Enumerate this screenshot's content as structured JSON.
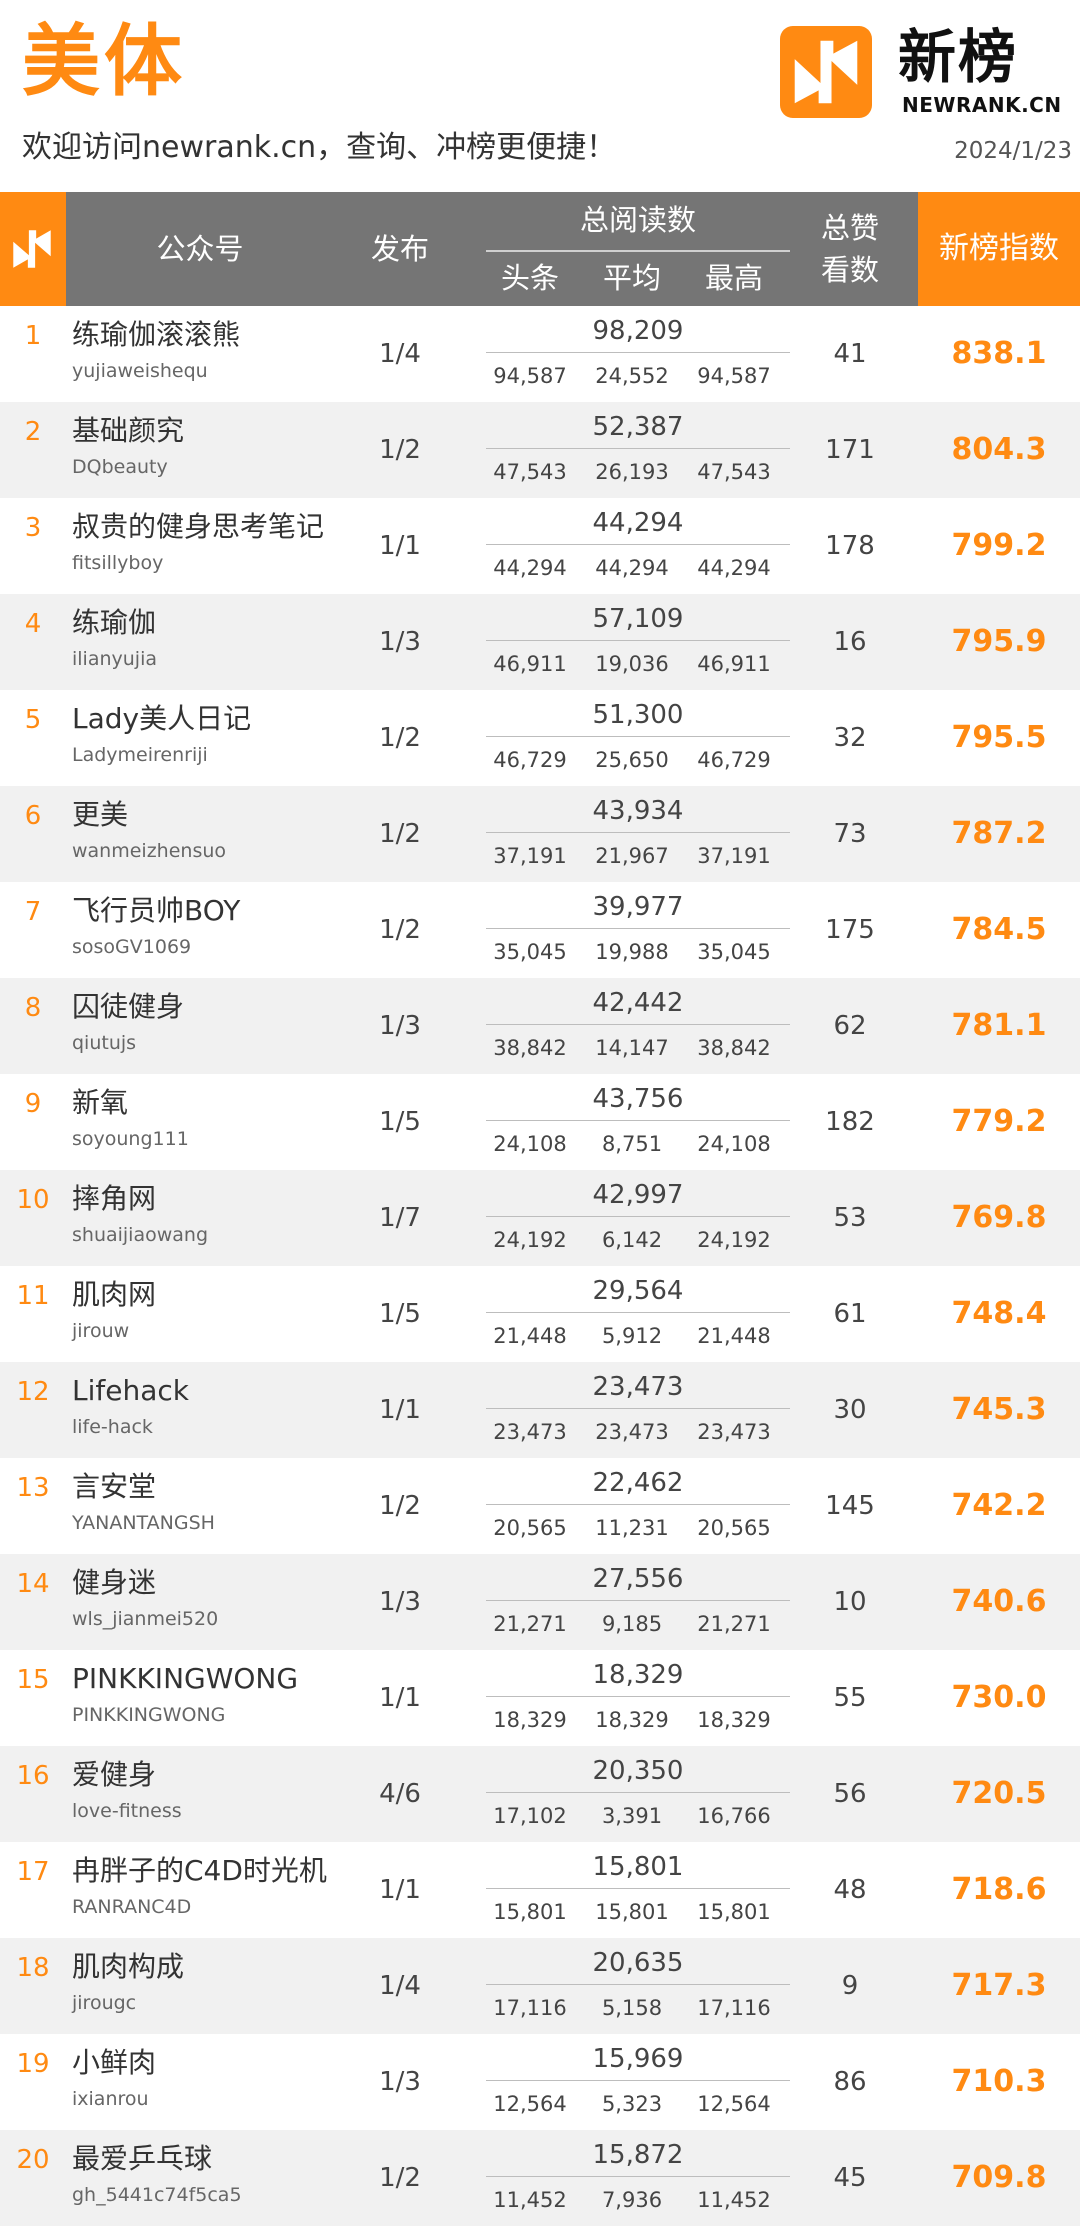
{
  "header": {
    "title": "美体",
    "subtitle": "欢迎访问newrank.cn，查询、冲榜更便捷！",
    "date": "2024/1/23",
    "brand": "新榜",
    "brand_sub": "NEWRANK.CN"
  },
  "table": {
    "col_account": "公众号",
    "col_publish": "发布",
    "col_reads": "总阅读数",
    "col_head": "头条",
    "col_avg": "平均",
    "col_max": "最高",
    "col_likes_1": "总赞",
    "col_likes_2": "看数",
    "col_index": "新榜指数"
  },
  "colors": {
    "accent": "#ff8a12",
    "header_gray": "#757575",
    "row_alt": "#f1f1f1"
  },
  "rows": [
    {
      "rank": "1",
      "name": "练瑜伽滚滚熊",
      "account": "yujiaweishequ",
      "publish": "1/4",
      "total": "98,209",
      "head": "94,587",
      "avg": "24,552",
      "max": "94,587",
      "likes": "41",
      "index": "838.1"
    },
    {
      "rank": "2",
      "name": "基础颜究",
      "account": "DQbeauty",
      "publish": "1/2",
      "total": "52,387",
      "head": "47,543",
      "avg": "26,193",
      "max": "47,543",
      "likes": "171",
      "index": "804.3"
    },
    {
      "rank": "3",
      "name": "叔贵的健身思考笔记",
      "account": "fitsillyboy",
      "publish": "1/1",
      "total": "44,294",
      "head": "44,294",
      "avg": "44,294",
      "max": "44,294",
      "likes": "178",
      "index": "799.2"
    },
    {
      "rank": "4",
      "name": "练瑜伽",
      "account": "ilianyujia",
      "publish": "1/3",
      "total": "57,109",
      "head": "46,911",
      "avg": "19,036",
      "max": "46,911",
      "likes": "16",
      "index": "795.9"
    },
    {
      "rank": "5",
      "name": "Lady美人日记",
      "account": "Ladymeirenriji",
      "publish": "1/2",
      "total": "51,300",
      "head": "46,729",
      "avg": "25,650",
      "max": "46,729",
      "likes": "32",
      "index": "795.5"
    },
    {
      "rank": "6",
      "name": "更美",
      "account": "wanmeizhensuo",
      "publish": "1/2",
      "total": "43,934",
      "head": "37,191",
      "avg": "21,967",
      "max": "37,191",
      "likes": "73",
      "index": "787.2"
    },
    {
      "rank": "7",
      "name": "飞行员帅BOY",
      "account": "sosoGV1069",
      "publish": "1/2",
      "total": "39,977",
      "head": "35,045",
      "avg": "19,988",
      "max": "35,045",
      "likes": "175",
      "index": "784.5"
    },
    {
      "rank": "8",
      "name": "囚徒健身",
      "account": "qiutujs",
      "publish": "1/3",
      "total": "42,442",
      "head": "38,842",
      "avg": "14,147",
      "max": "38,842",
      "likes": "62",
      "index": "781.1"
    },
    {
      "rank": "9",
      "name": "新氧",
      "account": "soyoung111",
      "publish": "1/5",
      "total": "43,756",
      "head": "24,108",
      "avg": "8,751",
      "max": "24,108",
      "likes": "182",
      "index": "779.2"
    },
    {
      "rank": "10",
      "name": "摔角网",
      "account": "shuaijiaowang",
      "publish": "1/7",
      "total": "42,997",
      "head": "24,192",
      "avg": "6,142",
      "max": "24,192",
      "likes": "53",
      "index": "769.8"
    },
    {
      "rank": "11",
      "name": "肌肉网",
      "account": "jirouw",
      "publish": "1/5",
      "total": "29,564",
      "head": "21,448",
      "avg": "5,912",
      "max": "21,448",
      "likes": "61",
      "index": "748.4"
    },
    {
      "rank": "12",
      "name": "Lifehack",
      "account": "life-hack",
      "publish": "1/1",
      "total": "23,473",
      "head": "23,473",
      "avg": "23,473",
      "max": "23,473",
      "likes": "30",
      "index": "745.3"
    },
    {
      "rank": "13",
      "name": "言安堂",
      "account": "YANANTANGSH",
      "publish": "1/2",
      "total": "22,462",
      "head": "20,565",
      "avg": "11,231",
      "max": "20,565",
      "likes": "145",
      "index": "742.2"
    },
    {
      "rank": "14",
      "name": "健身迷",
      "account": "wls_jianmei520",
      "publish": "1/3",
      "total": "27,556",
      "head": "21,271",
      "avg": "9,185",
      "max": "21,271",
      "likes": "10",
      "index": "740.6"
    },
    {
      "rank": "15",
      "name": "PINKKINGWONG",
      "account": "PINKKINGWONG",
      "publish": "1/1",
      "total": "18,329",
      "head": "18,329",
      "avg": "18,329",
      "max": "18,329",
      "likes": "55",
      "index": "730.0"
    },
    {
      "rank": "16",
      "name": "爱健身",
      "account": "love-fitness",
      "publish": "4/6",
      "total": "20,350",
      "head": "17,102",
      "avg": "3,391",
      "max": "16,766",
      "likes": "56",
      "index": "720.5"
    },
    {
      "rank": "17",
      "name": "冉胖子的C4D时光机",
      "account": "RANRANC4D",
      "publish": "1/1",
      "total": "15,801",
      "head": "15,801",
      "avg": "15,801",
      "max": "15,801",
      "likes": "48",
      "index": "718.6"
    },
    {
      "rank": "18",
      "name": "肌肉构成",
      "account": "jirougc",
      "publish": "1/4",
      "total": "20,635",
      "head": "17,116",
      "avg": "5,158",
      "max": "17,116",
      "likes": "9",
      "index": "717.3"
    },
    {
      "rank": "19",
      "name": "小鲜肉",
      "account": "ixianrou",
      "publish": "1/3",
      "total": "15,969",
      "head": "12,564",
      "avg": "5,323",
      "max": "12,564",
      "likes": "86",
      "index": "710.3"
    },
    {
      "rank": "20",
      "name": "最爱乒乓球",
      "account": "gh_5441c74f5ca5",
      "publish": "1/2",
      "total": "15,872",
      "head": "11,452",
      "avg": "7,936",
      "max": "11,452",
      "likes": "45",
      "index": "709.8"
    }
  ]
}
